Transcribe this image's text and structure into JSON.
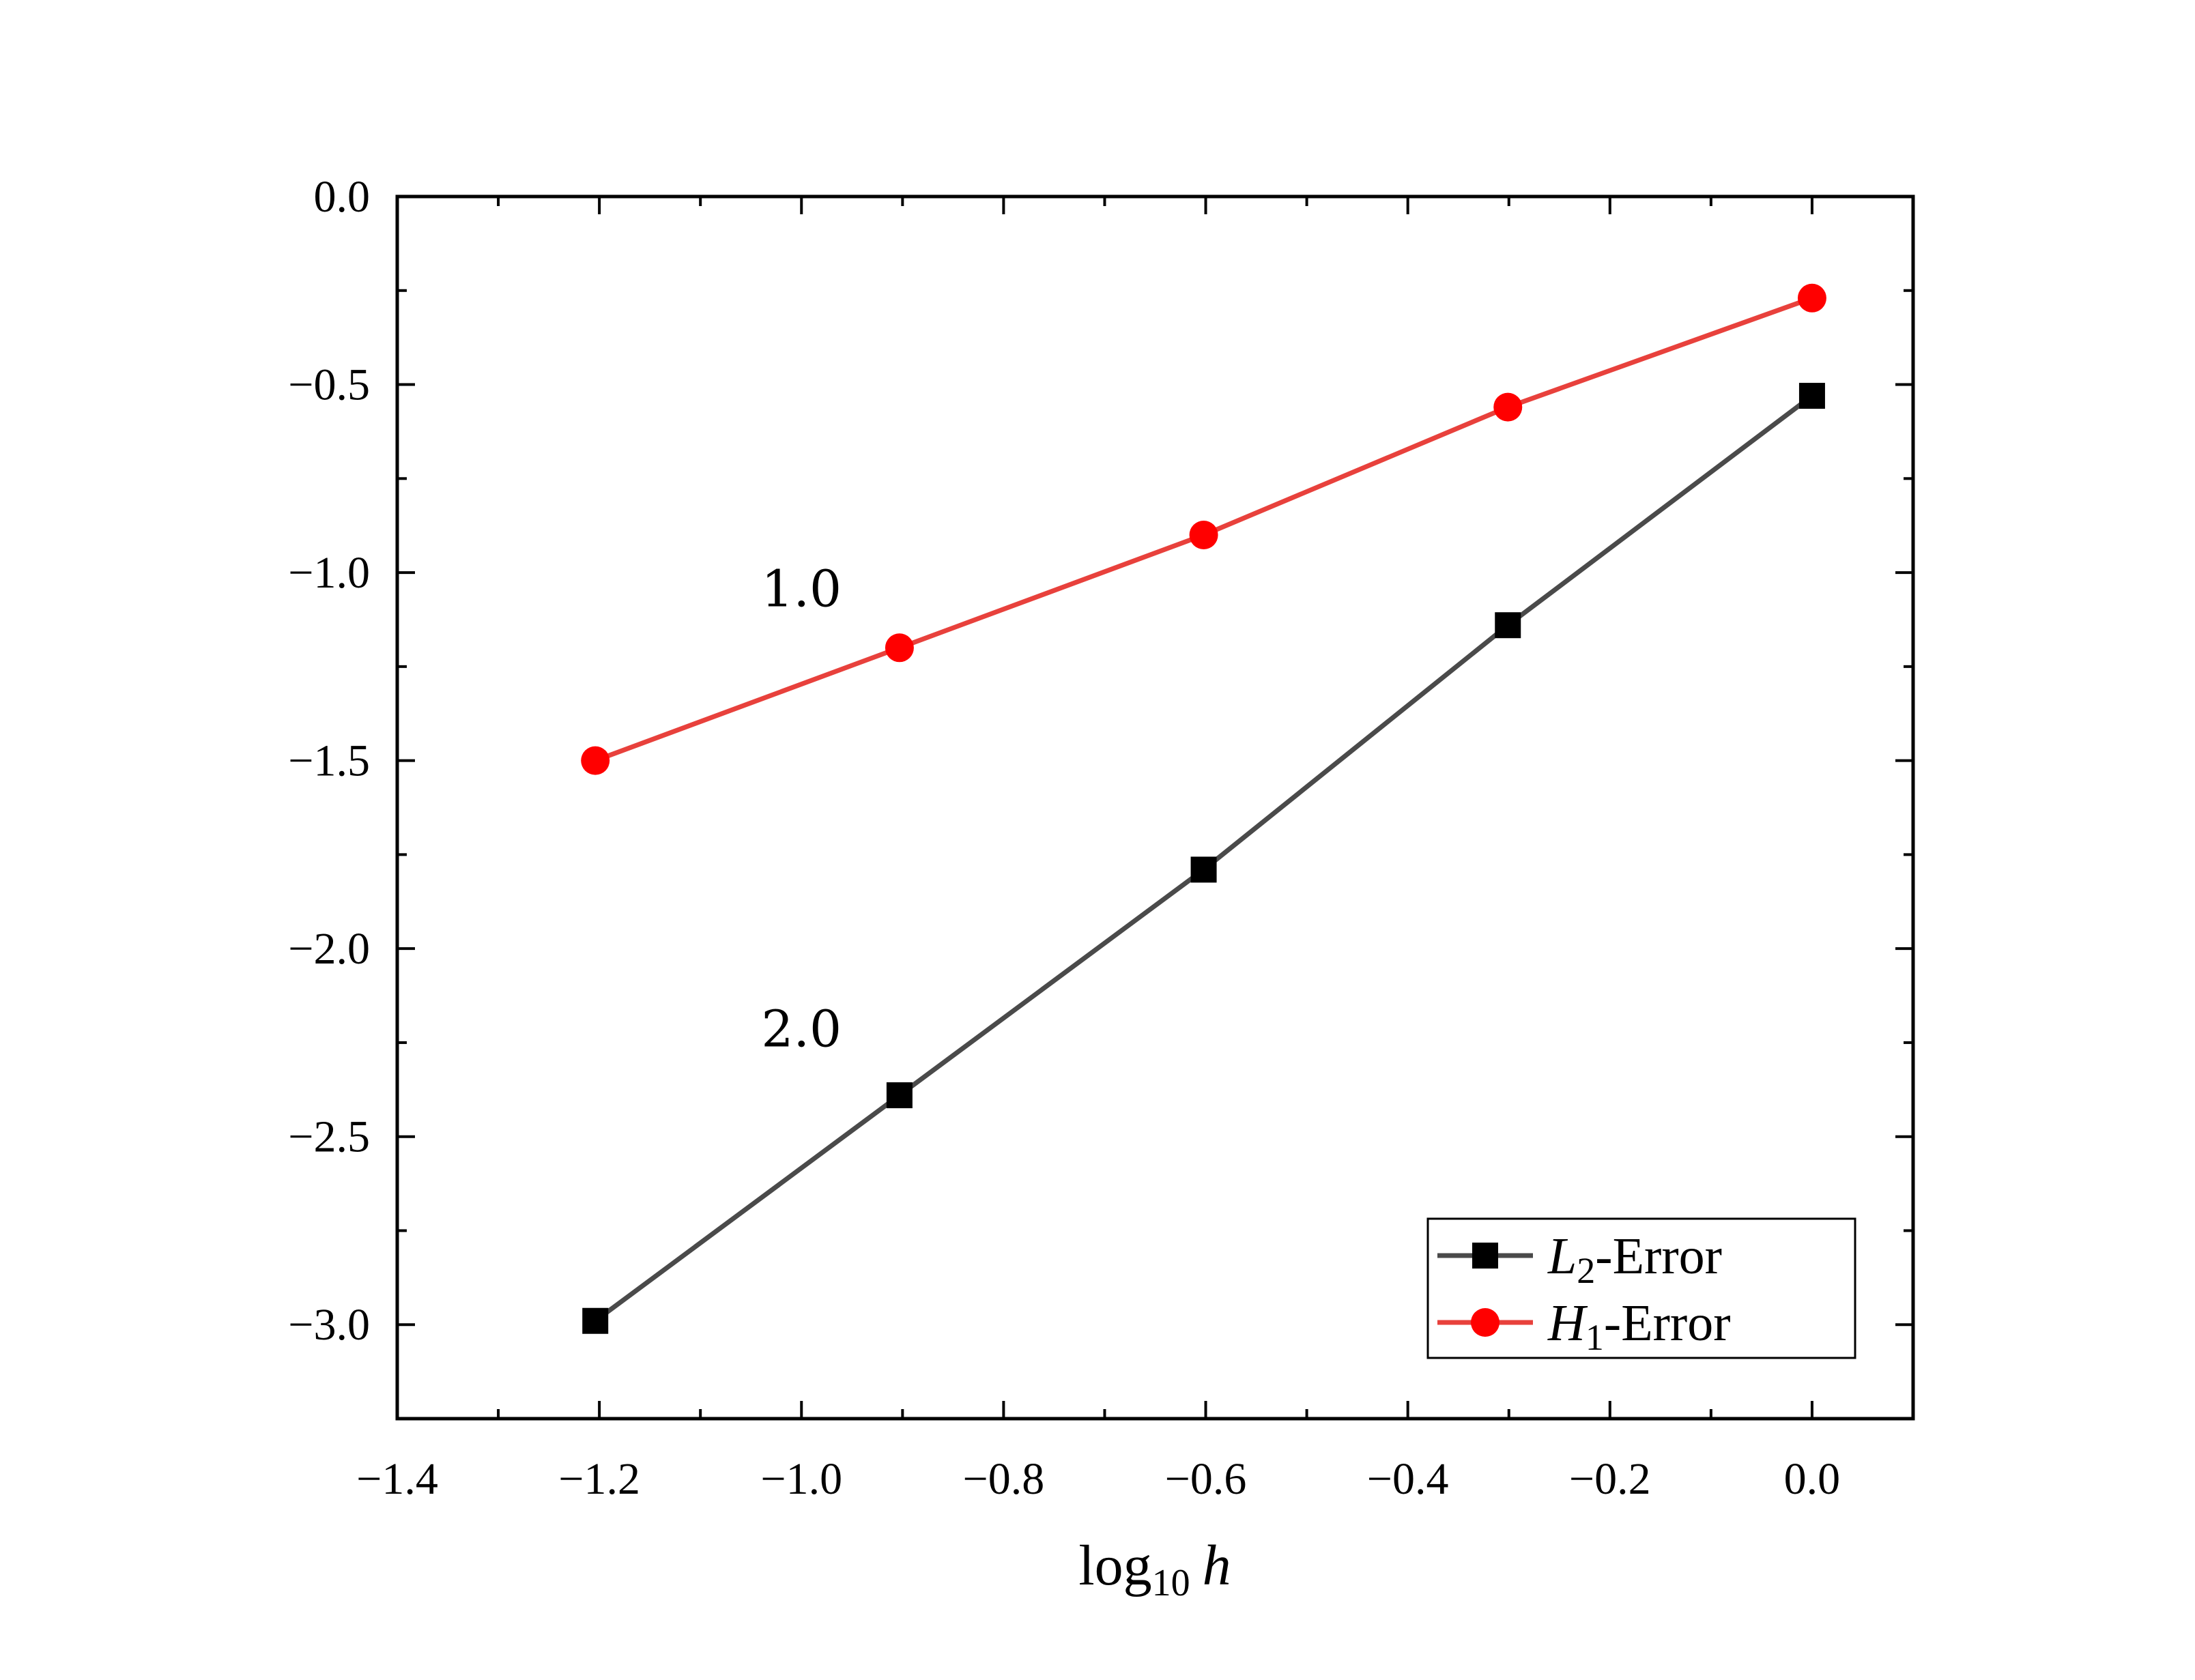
{
  "chart_data": {
    "type": "line",
    "title": "",
    "xlabel": {
      "main": "log",
      "sub": "10",
      "var": "h"
    },
    "ylabel": "",
    "xlim": [
      -1.4,
      0.1
    ],
    "ylim": [
      -3.25,
      0.0
    ],
    "xticks": [
      -1.4,
      -1.2,
      -1.0,
      -0.8,
      -0.6,
      -0.4,
      -0.2,
      0.0
    ],
    "xtick_labels": [
      "−1.4",
      "−1.2",
      "−1.0",
      "−0.8",
      "−0.6",
      "−0.4",
      "−0.2",
      "0.0"
    ],
    "yticks": [
      0.0,
      -0.5,
      -1.0,
      -1.5,
      -2.0,
      -2.5,
      -3.0
    ],
    "ytick_labels": [
      "0.0",
      "−0.5",
      "−1.0",
      "−1.5",
      "−2.0",
      "−2.5",
      "−3.0"
    ],
    "grid": false,
    "legend_position": "bottom-right",
    "x": [
      -1.204,
      -0.903,
      -0.602,
      -0.301,
      0.0
    ],
    "series": [
      {
        "name": "L2-Error",
        "label_main": "L",
        "label_sub": "2",
        "label_suffix": "-Error",
        "marker": "square",
        "color": "#4a4a4a",
        "marker_color": "#000000",
        "values": [
          -2.99,
          -2.39,
          -1.79,
          -1.14,
          -0.53
        ]
      },
      {
        "name": "H1-Error",
        "label_main": "H",
        "label_sub": "1",
        "label_suffix": "-Error",
        "marker": "circle",
        "color": "#e8413c",
        "marker_color": "#ff0000",
        "values": [
          -1.5,
          -1.2,
          -0.9,
          -0.56,
          -0.27
        ]
      }
    ],
    "annotations": [
      {
        "text": "1.0",
        "x": -1.0,
        "y": -1.09
      },
      {
        "text": "2.0",
        "x": -1.0,
        "y": -2.26
      }
    ]
  }
}
